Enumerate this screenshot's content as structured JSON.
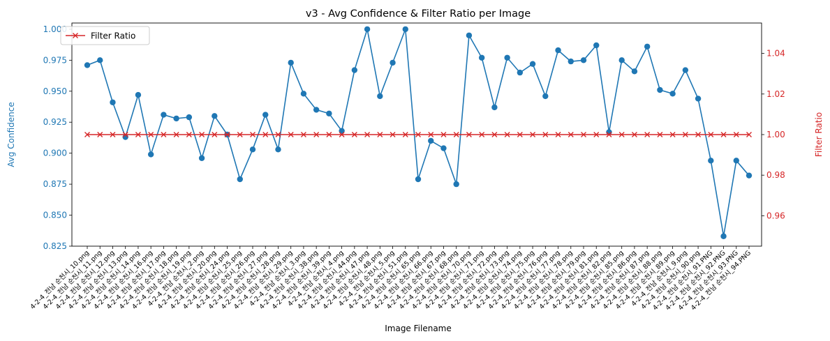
{
  "chart_data": {
    "type": "line",
    "title": "v3 - Avg Confidence & Filter Ratio per Image",
    "xlabel": "Image Filename",
    "ylabel_left": "Avg Confidence",
    "ylabel_right": "Filter Ratio",
    "ylim_left": [
      0.825,
      1.005
    ],
    "ylim_right": [
      0.945,
      1.055
    ],
    "yticks_left": [
      "0.825",
      "0.850",
      "0.875",
      "0.900",
      "0.925",
      "0.950",
      "0.975",
      "1.000"
    ],
    "yticks_right": [
      "0.96",
      "0.98",
      "1.00",
      "1.02",
      "1.04"
    ],
    "grid": false,
    "legend_position": "top-left",
    "categories": [
      "4-2-4_전남 순천시_10.png",
      "4-2-4_전남 순천시_11.png",
      "4-2-4_전남 순천시_12.png",
      "4-2-4_전남 순천시_13.png",
      "4-2-4_전남 순천시_14.png",
      "4-2-4_전남 순천시_16.png",
      "4-2-4_전남 순천시_17.png",
      "4-2-4_전남 순천시_18.png",
      "4-2-4_전남 순천시_19.png",
      "4-2-4_전남 순천시_2.png",
      "4-2-4_전남 순천시_20.png",
      "4-2-4_전남 순천시_24.png",
      "4-2-4_전남 순천시_25.png",
      "4-2-4_전남 순천시_26.png",
      "4-2-4_전남 순천시_27.png",
      "4-2-4_전남 순천시_28.png",
      "4-2-4_전남 순천시_29.png",
      "4-2-4_전남 순천시_3.png",
      "4-2-4_전남 순천시_38.png",
      "4-2-4_전남 순천시_39.png",
      "4-2-4_전남 순천시_4.png",
      "4-2-4_전남 순천시_44.png",
      "4-2-4_전남 순천시_47.png",
      "4-2-4_전남 순천시_48.png",
      "4-2-4_전남 순천시_5.png",
      "4-2-4_전남 순천시_51.png",
      "4-2-4_전남 순천시_65.png",
      "4-2-4_전남 순천시_66.png",
      "4-2-4_전남 순천시_67.png",
      "4-2-4_전남 순천시_68.png",
      "4-2-4_전남 순천시_70.png",
      "4-2-4_전남 순천시_71.png",
      "4-2-4_전남 순천시_72.png",
      "4-2-4_전남 순천시_73.png",
      "4-2-4_전남 순천시_74.png",
      "4-2-4_전남 순천시_75.png",
      "4-2-4_전남 순천시_76.png",
      "4-2-4_전남 순천시_77.png",
      "4-2-4_전남 순천시_78.png",
      "4-2-4_전남 순천시_79.png",
      "4-2-4_전남 순천시_81.png",
      "4-2-4_전남 순천시_82.png",
      "4-2-4_전남 순천시_85.png",
      "4-2-4_전남 순천시_86.png",
      "4-2-4_전남 순천시_87.png",
      "4-2-4_전남 순천시_88.png",
      "4-2-4_전남 순천시_89.png",
      "4-2-4_전남 순천시_9.png",
      "4-2-4_전남 순천시_90.png",
      "4-2-4_전남 순천시_91.PNG",
      "4-2-4_전남 순천시_92.PNG",
      "4-2-4_전남 순천시_93.PNG",
      "4-2-4_전남 순천시_94.PNG"
    ],
    "series": [
      {
        "name": "Avg Confidence",
        "axis": "left",
        "marker": "circle",
        "color": "#1f77b4",
        "values": [
          0.971,
          0.975,
          0.941,
          0.913,
          0.947,
          0.899,
          0.931,
          0.928,
          0.929,
          0.896,
          0.93,
          0.915,
          0.879,
          0.903,
          0.931,
          0.903,
          0.973,
          0.948,
          0.935,
          0.932,
          0.918,
          0.967,
          1.0,
          0.946,
          0.973,
          1.0,
          0.879,
          0.91,
          0.904,
          0.875,
          0.995,
          0.977,
          0.937,
          0.977,
          0.965,
          0.972,
          0.946,
          0.983,
          0.974,
          0.975,
          0.987,
          0.917,
          0.975,
          0.966,
          0.986,
          0.951,
          0.948,
          0.967,
          0.944,
          0.894,
          0.833,
          0.894,
          0.882
        ]
      },
      {
        "name": "Filter Ratio",
        "axis": "right",
        "marker": "x",
        "color": "#d62728",
        "values": [
          1.0,
          1.0,
          1.0,
          1.0,
          1.0,
          1.0,
          1.0,
          1.0,
          1.0,
          1.0,
          1.0,
          1.0,
          1.0,
          1.0,
          1.0,
          1.0,
          1.0,
          1.0,
          1.0,
          1.0,
          1.0,
          1.0,
          1.0,
          1.0,
          1.0,
          1.0,
          1.0,
          1.0,
          1.0,
          1.0,
          1.0,
          1.0,
          1.0,
          1.0,
          1.0,
          1.0,
          1.0,
          1.0,
          1.0,
          1.0,
          1.0,
          1.0,
          1.0,
          1.0,
          1.0,
          1.0,
          1.0,
          1.0,
          1.0,
          1.0,
          1.0,
          1.0,
          1.0
        ]
      }
    ],
    "legend": [
      "Filter Ratio"
    ]
  }
}
